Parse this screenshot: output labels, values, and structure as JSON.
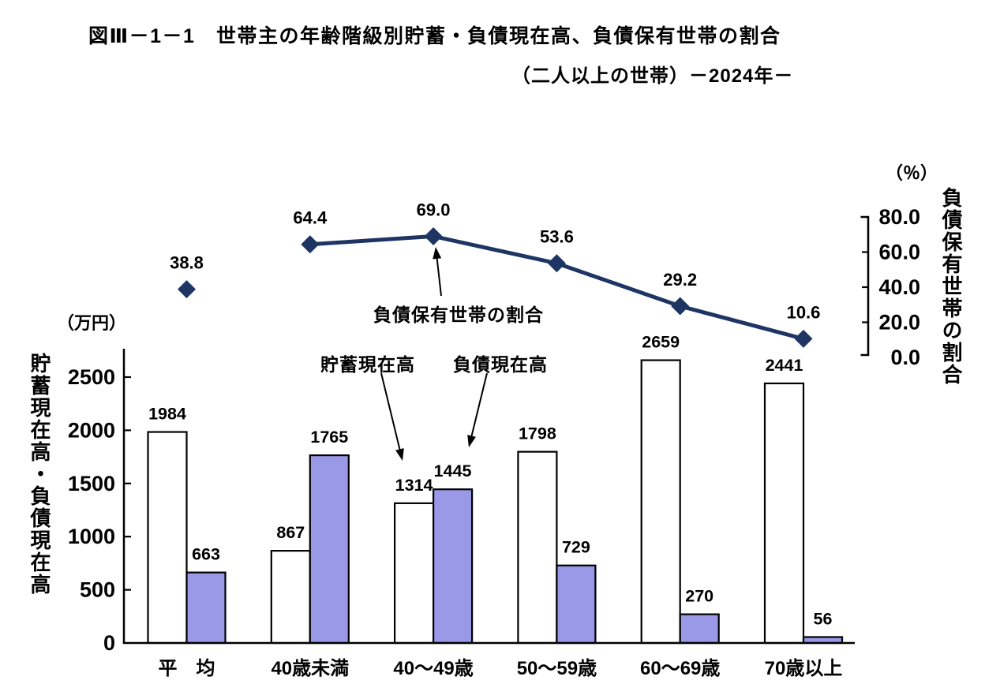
{
  "title": "図Ⅲ－1－1　世帯主の年齢階級別貯蓄・負債現在高、負債保有世帯の割合",
  "subtitle": "（二人以上の世帯）－2024年－",
  "left_axis": {
    "unit": "（万円）",
    "title": "貯蓄現在高・負債現在高",
    "ticks": [
      0,
      500,
      1000,
      1500,
      2000,
      2500
    ],
    "range": [
      0,
      2500
    ]
  },
  "right_axis": {
    "unit": "（％）",
    "title": "負債保有世帯の割合",
    "ticks": [
      0.0,
      20.0,
      40.0,
      60.0,
      80.0
    ],
    "range": [
      0,
      80
    ]
  },
  "annotations": {
    "ratio_label": "負債保有世帯の割合",
    "savings_label": "貯蓄現在高",
    "debt_label": "負債現在高"
  },
  "colors": {
    "savings_bar": "#ffffff",
    "debt_bar": "#9999e8",
    "line": "#1e3564",
    "axis": "#000000"
  },
  "chart_data": {
    "type": "bar",
    "note": "grouped bars with overlaid line (right axis), line not drawn through first category",
    "categories": [
      "平　均",
      "40歳未満",
      "40～49歳",
      "50～59歳",
      "60～69歳",
      "70歳以上"
    ],
    "series": [
      {
        "name": "貯蓄現在高",
        "type": "bar",
        "axis": "left",
        "values": [
          1984,
          867,
          1314,
          1798,
          2659,
          2441
        ]
      },
      {
        "name": "負債現在高",
        "type": "bar",
        "axis": "left",
        "values": [
          663,
          1765,
          1445,
          729,
          270,
          56
        ]
      },
      {
        "name": "負債保有世帯の割合",
        "type": "line",
        "axis": "right",
        "values": [
          38.8,
          64.4,
          69.0,
          53.6,
          29.2,
          10.6
        ],
        "line_starts_at_index": 1
      }
    ],
    "title": "世帯主の年齢階級別貯蓄・負債現在高、負債保有世帯の割合（二人以上の世帯）2024年",
    "xlabel": "",
    "ylabel_left": "貯蓄現在高・負債現在高（万円）",
    "ylabel_right": "負債保有世帯の割合（％）",
    "ylim_left": [
      0,
      2500
    ],
    "ylim_right": [
      0,
      80
    ],
    "grid": false,
    "legend_position": "annotations-with-arrows"
  }
}
